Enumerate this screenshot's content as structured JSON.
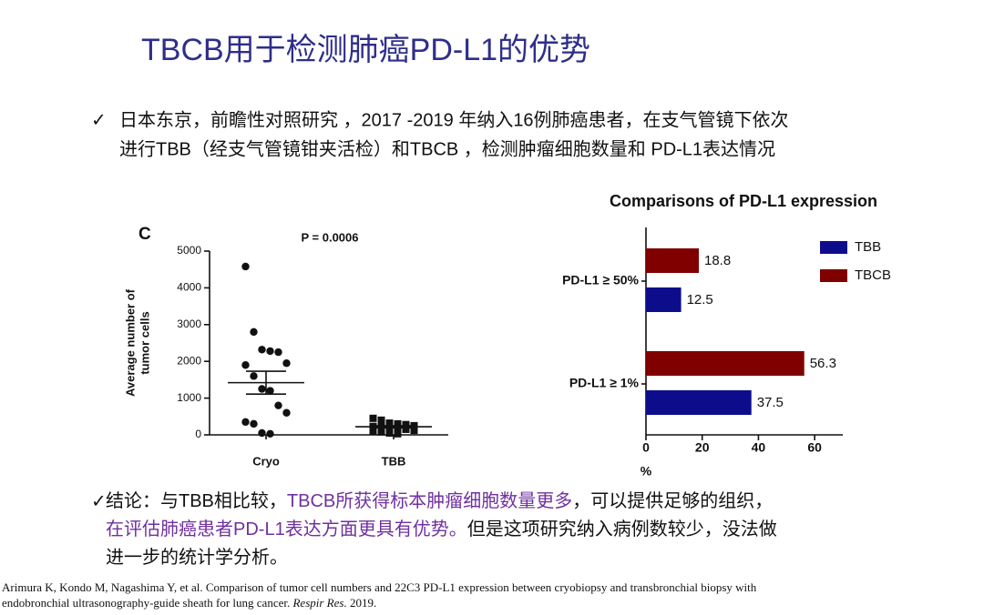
{
  "title": "TBCB用于检测肺癌PD-L1的优势",
  "bullets": [
    "日本东京，前瞻性对照研究 ，2017 -2019 年纳入16例肺癌患者，在支气管镜下依次",
    "进行TBB（经支气管镜钳夹活检）和TBCB ，检测肿瘤细胞数量和 PD-L1表达情况"
  ],
  "conclusion": [
    [
      {
        "text": "结论：与TBB相比较，"
      },
      {
        "text": "TBCB所获得标本肿瘤细胞数量更多",
        "color": "#7030a0"
      },
      {
        "text": "，可以提供足够的组织，"
      }
    ],
    [
      {
        "text": "在评估肺癌患者PD-L1表达方面更具有优势。",
        "color": "#7030a0"
      },
      {
        "text": "但是这项研究纳入病例数较少，没法做"
      }
    ],
    [
      {
        "text": "进一步的统计学分析。"
      }
    ]
  ],
  "citation": [
    [
      {
        "text": "Arimura K, Kondo M, Nagashima Y, et al. Comparison of tumor cell numbers and 22C3 PD-L1 expression between cryobiopsy and transbronchial biopsy with"
      }
    ],
    [
      {
        "text": "endobronchial ultrasonography-guide sheath for lung cancer. "
      },
      {
        "text": "Respir Res.",
        "italic": true
      },
      {
        "text": " 2019."
      }
    ]
  ],
  "chart_data": [
    {
      "type": "scatter",
      "panel_label": "C",
      "annotation": "P = 0.0006",
      "ylabel": [
        "Average number of",
        "tumor cells"
      ],
      "categories": [
        "Cryo",
        "TBB"
      ],
      "values": [
        [
          4580,
          2800,
          2320,
          2280,
          2250,
          1950,
          1900,
          1600,
          1250,
          1200,
          800,
          600,
          350,
          300,
          50,
          30
        ],
        [
          450,
          400,
          320,
          300,
          280,
          250,
          230,
          210,
          200,
          180,
          150,
          120,
          100,
          80,
          50,
          30
        ]
      ],
      "means": [
        1420,
        220
      ],
      "errors": [
        310,
        30
      ],
      "ylim": [
        0,
        5000
      ],
      "yticks": [
        0,
        1000,
        2000,
        3000,
        4000,
        5000
      ]
    },
    {
      "type": "bar",
      "orientation": "horizontal",
      "title": "Comparisons of PD-L1 expression",
      "categories": [
        "PD-L1 ≥ 50%",
        "PD-L1 ≥ 1%"
      ],
      "series": [
        {
          "name": "TBB",
          "color": "#0d0d8c",
          "values": [
            12.5,
            37.5
          ]
        },
        {
          "name": "TBCB",
          "color": "#800000",
          "values": [
            18.8,
            56.3
          ]
        }
      ],
      "xlabel": "%",
      "xlim": [
        0,
        70
      ],
      "xticks": [
        0,
        20,
        40,
        60
      ],
      "legend": "upper right"
    }
  ]
}
